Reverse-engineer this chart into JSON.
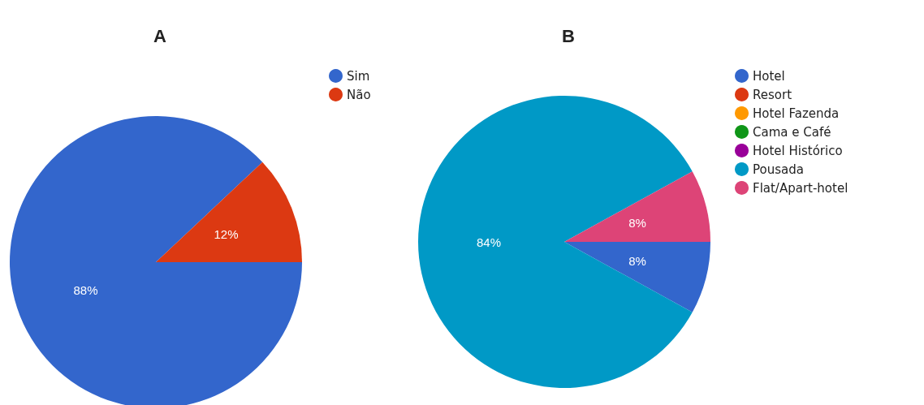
{
  "chart_data": [
    {
      "type": "pie",
      "title": "A",
      "categories": [
        "Sim",
        "Não"
      ],
      "values": [
        88,
        12
      ],
      "colors": [
        "#3366cc",
        "#dc3912"
      ],
      "value_labels": [
        "88%",
        "12%"
      ],
      "legend": "right"
    },
    {
      "type": "pie",
      "title": "B",
      "categories": [
        "Hotel",
        "Resort",
        "Hotel Fazenda",
        "Cama e Café",
        "Hotel Histórico",
        "Pousada",
        "Flat/Apart-hotel"
      ],
      "values": [
        8,
        0,
        0,
        0,
        0,
        84,
        8
      ],
      "colors": [
        "#3366cc",
        "#dc3912",
        "#ff9900",
        "#109618",
        "#990099",
        "#0099c6",
        "#dd4477"
      ],
      "value_labels": [
        "8%",
        null,
        null,
        null,
        null,
        "84%",
        "8%"
      ],
      "legend": "right"
    }
  ]
}
